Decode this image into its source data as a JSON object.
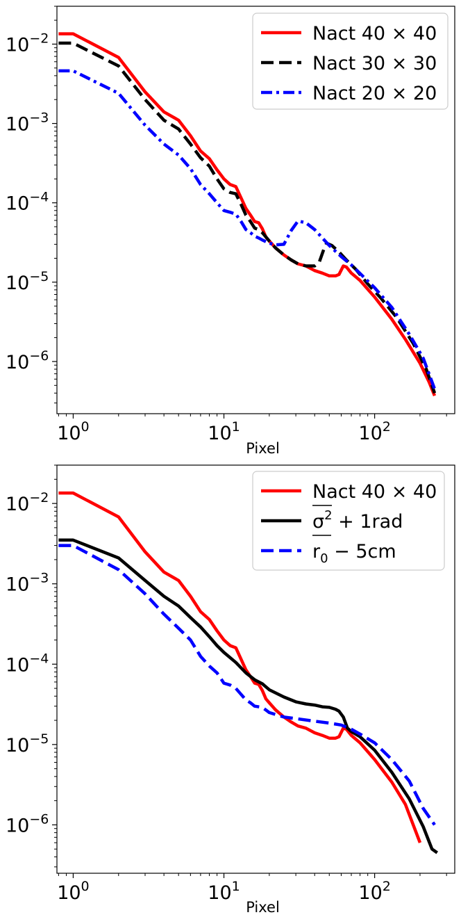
{
  "chart_data": [
    {
      "type": "line",
      "xscale": "log",
      "yscale": "log",
      "xlabel": "Pixel",
      "ylabel": "",
      "xlim": [
        0.78,
        340
      ],
      "ylim": [
        2.2e-07,
        0.03
      ],
      "xticks": [
        {
          "value": 1,
          "base": "10",
          "exp": "0"
        },
        {
          "value": 10,
          "base": "10",
          "exp": "1"
        },
        {
          "value": 100,
          "base": "10",
          "exp": "2"
        }
      ],
      "yticks": [
        {
          "value": 0.01,
          "base": "10",
          "exp": "−2"
        },
        {
          "value": 0.001,
          "base": "10",
          "exp": "−3"
        },
        {
          "value": 0.0001,
          "base": "10",
          "exp": "−4"
        },
        {
          "value": 1e-05,
          "base": "10",
          "exp": "−5"
        },
        {
          "value": 1e-06,
          "base": "10",
          "exp": "−6"
        }
      ],
      "grid": false,
      "legend_position": "top-right",
      "series": [
        {
          "name": "Nact 40 × 40",
          "color": "#ff0000",
          "style": "solid",
          "points": [
            [
              0.8,
              0.0135
            ],
            [
              1,
              0.0135
            ],
            [
              2,
              0.0068
            ],
            [
              3,
              0.0025
            ],
            [
              4,
              0.0014
            ],
            [
              5,
              0.0011
            ],
            [
              6,
              0.0007
            ],
            [
              7,
              0.00045
            ],
            [
              8,
              0.00036
            ],
            [
              9,
              0.00026
            ],
            [
              10,
              0.0002
            ],
            [
              11,
              0.00017
            ],
            [
              12,
              0.00016
            ],
            [
              13,
              0.000115
            ],
            [
              14,
              8.5e-05
            ],
            [
              15,
              7e-05
            ],
            [
              16,
              5.8e-05
            ],
            [
              17,
              5.6e-05
            ],
            [
              18,
              4.7e-05
            ],
            [
              19,
              3.7e-05
            ],
            [
              20,
              3.3e-05
            ],
            [
              22,
              2.7e-05
            ],
            [
              25,
              2.2e-05
            ],
            [
              28,
              1.9e-05
            ],
            [
              31,
              1.7e-05
            ],
            [
              35,
              1.6e-05
            ],
            [
              40,
              1.4e-05
            ],
            [
              45,
              1.3e-05
            ],
            [
              50,
              1.2e-05
            ],
            [
              55,
              1.2e-05
            ],
            [
              58,
              1.25e-05
            ],
            [
              62,
              1.6e-05
            ],
            [
              65,
              1.55e-05
            ],
            [
              70,
              1.3e-05
            ],
            [
              80,
              1.05e-05
            ],
            [
              100,
              6.5e-06
            ],
            [
              130,
              3.4e-06
            ],
            [
              160,
              1.9e-06
            ],
            [
              200,
              9.5e-07
            ],
            [
              230,
              5.5e-07
            ],
            [
              250,
              3.7e-07
            ]
          ]
        },
        {
          "name": "Nact 30 × 30",
          "color": "#000000",
          "style": "dashed",
          "points": [
            [
              0.8,
              0.0103
            ],
            [
              1,
              0.0103
            ],
            [
              2,
              0.0053
            ],
            [
              3,
              0.002
            ],
            [
              4,
              0.0011
            ],
            [
              5,
              0.00085
            ],
            [
              6,
              0.00055
            ],
            [
              7,
              0.00037
            ],
            [
              8,
              0.00029
            ],
            [
              9,
              0.0002
            ],
            [
              10,
              0.00015
            ],
            [
              11,
              0.000135
            ],
            [
              12,
              0.00013
            ],
            [
              13,
              9.5e-05
            ],
            [
              14,
              7e-05
            ],
            [
              15,
              5.8e-05
            ],
            [
              16,
              4.8e-05
            ],
            [
              17,
              4.6e-05
            ],
            [
              18,
              4.2e-05
            ],
            [
              20,
              3.3e-05
            ],
            [
              22,
              2.7e-05
            ],
            [
              25,
              2.2e-05
            ],
            [
              28,
              1.9e-05
            ],
            [
              31,
              1.7e-05
            ],
            [
              35,
              1.6e-05
            ],
            [
              40,
              1.6e-05
            ],
            [
              43,
              1.8e-05
            ],
            [
              46,
              2.6e-05
            ],
            [
              48,
              3.1e-05
            ],
            [
              52,
              2.9e-05
            ],
            [
              58,
              2.4e-05
            ],
            [
              65,
              1.9e-05
            ],
            [
              75,
              1.45e-05
            ],
            [
              90,
              9.5e-06
            ],
            [
              110,
              6.3e-06
            ],
            [
              140,
              3.6e-06
            ],
            [
              180,
              1.7e-06
            ],
            [
              220,
              8e-07
            ],
            [
              250,
              4e-07
            ]
          ]
        },
        {
          "name": "Nact 20 × 20",
          "color": "#0000ff",
          "style": "dashdot",
          "points": [
            [
              0.8,
              0.0046
            ],
            [
              1,
              0.0046
            ],
            [
              2,
              0.0024
            ],
            [
              3,
              0.00095
            ],
            [
              4,
              0.00055
            ],
            [
              5,
              0.0004
            ],
            [
              6,
              0.00027
            ],
            [
              7,
              0.00017
            ],
            [
              8,
              0.00013
            ],
            [
              9,
              0.0001
            ],
            [
              10,
              8e-05
            ],
            [
              11,
              7.6e-05
            ],
            [
              12,
              7.2e-05
            ],
            [
              13,
              5.8e-05
            ],
            [
              14,
              4.6e-05
            ],
            [
              15,
              4.2e-05
            ],
            [
              16,
              3.8e-05
            ],
            [
              17,
              3.6e-05
            ],
            [
              18,
              3.4e-05
            ],
            [
              20,
              3.1e-05
            ],
            [
              22,
              2.95e-05
            ],
            [
              25,
              3e-05
            ],
            [
              28,
              4.5e-05
            ],
            [
              31,
              5.9e-05
            ],
            [
              35,
              5.6e-05
            ],
            [
              40,
              4.6e-05
            ],
            [
              45,
              3.6e-05
            ],
            [
              50,
              2.9e-05
            ],
            [
              60,
              2.1e-05
            ],
            [
              70,
              1.65e-05
            ],
            [
              85,
              1.15e-05
            ],
            [
              100,
              8.5e-06
            ],
            [
              130,
              4.8e-06
            ],
            [
              170,
              2.2e-06
            ],
            [
              210,
              1.1e-06
            ],
            [
              250,
              4.5e-07
            ]
          ]
        }
      ]
    },
    {
      "type": "line",
      "xscale": "log",
      "yscale": "log",
      "xlabel": "Pixel",
      "ylabel": "",
      "xlim": [
        0.78,
        340
      ],
      "ylim": [
        2.5e-07,
        0.03
      ],
      "xticks": [
        {
          "value": 1,
          "base": "10",
          "exp": "0"
        },
        {
          "value": 10,
          "base": "10",
          "exp": "1"
        },
        {
          "value": 100,
          "base": "10",
          "exp": "2"
        }
      ],
      "yticks": [
        {
          "value": 0.01,
          "base": "10",
          "exp": "−2"
        },
        {
          "value": 0.001,
          "base": "10",
          "exp": "−3"
        },
        {
          "value": 0.0001,
          "base": "10",
          "exp": "−4"
        },
        {
          "value": 1e-05,
          "base": "10",
          "exp": "−5"
        },
        {
          "value": 1e-06,
          "base": "10",
          "exp": "−6"
        }
      ],
      "grid": false,
      "legend_position": "top-right",
      "series": [
        {
          "name": "Nact 40 × 40",
          "legend": {
            "text": "Nact 40 × 40"
          },
          "color": "#ff0000",
          "style": "solid",
          "points": [
            [
              0.8,
              0.0135
            ],
            [
              1,
              0.0135
            ],
            [
              2,
              0.0068
            ],
            [
              3,
              0.0025
            ],
            [
              4,
              0.0014
            ],
            [
              5,
              0.0011
            ],
            [
              6,
              0.0007
            ],
            [
              7,
              0.00045
            ],
            [
              8,
              0.00036
            ],
            [
              9,
              0.00026
            ],
            [
              10,
              0.0002
            ],
            [
              11,
              0.00017
            ],
            [
              12,
              0.00016
            ],
            [
              13,
              0.000115
            ],
            [
              14,
              8.5e-05
            ],
            [
              15,
              7e-05
            ],
            [
              16,
              5.8e-05
            ],
            [
              17,
              5.6e-05
            ],
            [
              18,
              4.7e-05
            ],
            [
              19,
              3.7e-05
            ],
            [
              20,
              3.3e-05
            ],
            [
              22,
              2.7e-05
            ],
            [
              25,
              2.2e-05
            ],
            [
              28,
              1.9e-05
            ],
            [
              31,
              1.7e-05
            ],
            [
              35,
              1.6e-05
            ],
            [
              40,
              1.4e-05
            ],
            [
              45,
              1.3e-05
            ],
            [
              50,
              1.2e-05
            ],
            [
              55,
              1.2e-05
            ],
            [
              58,
              1.25e-05
            ],
            [
              62,
              1.6e-05
            ],
            [
              65,
              1.55e-05
            ],
            [
              70,
              1.3e-05
            ],
            [
              80,
              1.05e-05
            ],
            [
              100,
              6.5e-06
            ],
            [
              130,
              3.4e-06
            ],
            [
              160,
              1.8e-06
            ],
            [
              200,
              6e-07
            ]
          ]
        },
        {
          "name": "σ² + 1rad",
          "legend": {
            "base": "σ",
            "sup": "2",
            "rest": " + 1rad",
            "overline": true
          },
          "color": "#000000",
          "style": "solid",
          "points": [
            [
              0.8,
              0.0035
            ],
            [
              1,
              0.0035
            ],
            [
              2,
              0.0021
            ],
            [
              3,
              0.0011
            ],
            [
              4,
              0.0007
            ],
            [
              5,
              0.00053
            ],
            [
              6,
              0.00038
            ],
            [
              7,
              0.00029
            ],
            [
              8,
              0.00022
            ],
            [
              9,
              0.00017
            ],
            [
              10,
              0.00014
            ],
            [
              12,
              0.000105
            ],
            [
              14,
              7.8e-05
            ],
            [
              16,
              6.4e-05
            ],
            [
              18,
              5.7e-05
            ],
            [
              20,
              4.8e-05
            ],
            [
              25,
              3.9e-05
            ],
            [
              30,
              3.4e-05
            ],
            [
              35,
              3.2e-05
            ],
            [
              40,
              3.1e-05
            ],
            [
              45,
              2.95e-05
            ],
            [
              50,
              2.9e-05
            ],
            [
              55,
              2.75e-05
            ],
            [
              58,
              2.6e-05
            ],
            [
              62,
              2.2e-05
            ],
            [
              66,
              1.6e-05
            ],
            [
              70,
              1.45e-05
            ],
            [
              80,
              1.25e-05
            ],
            [
              100,
              8.5e-06
            ],
            [
              130,
              4.5e-06
            ],
            [
              170,
              2.1e-06
            ],
            [
              210,
              9.5e-07
            ],
            [
              240,
              5e-07
            ],
            [
              260,
              4.5e-07
            ]
          ]
        },
        {
          "name": "r₀ − 5cm",
          "legend": {
            "base": "r",
            "sub": "0",
            "rest": " − 5cm",
            "overline": true
          },
          "color": "#0000ff",
          "style": "dashed",
          "points": [
            [
              0.8,
              0.003
            ],
            [
              1,
              0.003
            ],
            [
              2,
              0.0015
            ],
            [
              3,
              0.00075
            ],
            [
              4,
              0.00042
            ],
            [
              5,
              0.00028
            ],
            [
              6,
              0.0002
            ],
            [
              7,
              0.000125
            ],
            [
              8,
              9.5e-05
            ],
            [
              9,
              7.8e-05
            ],
            [
              10,
              5.8e-05
            ],
            [
              11,
              5.5e-05
            ],
            [
              12,
              5e-05
            ],
            [
              13,
              4.2e-05
            ],
            [
              14,
              3.6e-05
            ],
            [
              15,
              3.3e-05
            ],
            [
              16,
              3e-05
            ],
            [
              18,
              2.9e-05
            ],
            [
              20,
              2.5e-05
            ],
            [
              25,
              2.2e-05
            ],
            [
              30,
              2.1e-05
            ],
            [
              40,
              1.95e-05
            ],
            [
              50,
              1.85e-05
            ],
            [
              60,
              1.75e-05
            ],
            [
              70,
              1.55e-05
            ],
            [
              80,
              1.35e-05
            ],
            [
              100,
              1.05e-05
            ],
            [
              130,
              6.5e-06
            ],
            [
              170,
              3.5e-06
            ],
            [
              210,
              1.6e-06
            ],
            [
              250,
              1e-06
            ]
          ]
        }
      ]
    }
  ]
}
